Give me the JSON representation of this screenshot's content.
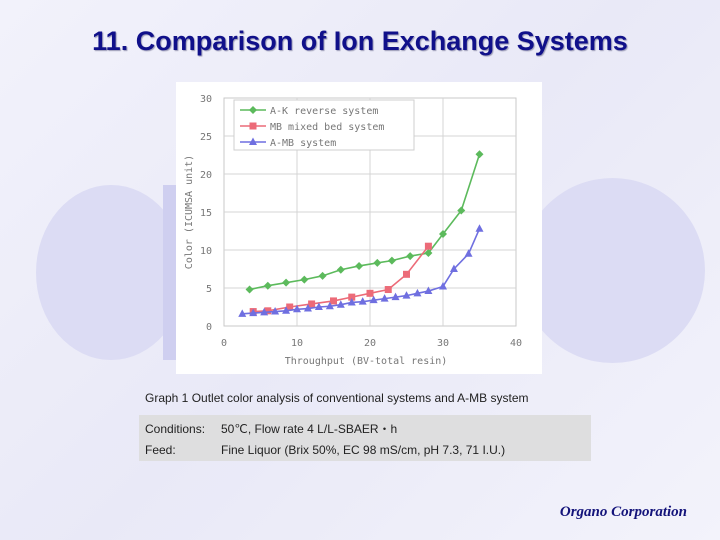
{
  "slide": {
    "title": "11.  Comparison of Ion Exchange Systems",
    "caption": "Graph 1  Outlet color analysis of conventional systems and A-MB system",
    "conditions_label": "Conditions:",
    "conditions_value": "50℃, Flow rate  4 L/L-SBAER・h",
    "feed_label": "Feed:",
    "feed_value": "Fine Liquor  (Brix 50%, EC 98 mS/cm, pH 7.3, 71 I.U.)",
    "footer": "Organo Corporation"
  },
  "colors": {
    "title": "#10108a",
    "series_ak": "#5cba5c",
    "series_mb": "#ec6b78",
    "series_amb": "#6f6fe0"
  },
  "chart_data": {
    "type": "line",
    "title": "",
    "xlabel": "Throughput (BV-total resin)",
    "ylabel": "Color (ICUMSA unit)",
    "xlim": [
      0,
      40
    ],
    "ylim": [
      0,
      30
    ],
    "xticks": [
      0,
      10,
      20,
      30,
      40
    ],
    "yticks": [
      0,
      5,
      10,
      15,
      20,
      25,
      30
    ],
    "legend_position": "top-left",
    "series": [
      {
        "name": "A-K  reverse system",
        "marker": "diamond",
        "color": "#5cba5c",
        "x": [
          3.5,
          6,
          8.5,
          11,
          13.5,
          16,
          18.5,
          21,
          23,
          25.5,
          28,
          30,
          32.5,
          35
        ],
        "y": [
          4.8,
          5.3,
          5.7,
          6.1,
          6.6,
          7.4,
          7.9,
          8.3,
          8.6,
          9.2,
          9.6,
          12.1,
          15.2,
          22.6
        ]
      },
      {
        "name": "MB  mixed bed system",
        "marker": "square",
        "color": "#ec6b78",
        "x": [
          4,
          6,
          9,
          12,
          15,
          17.5,
          20,
          22.5,
          25,
          28
        ],
        "y": [
          1.9,
          2.0,
          2.5,
          2.9,
          3.3,
          3.8,
          4.3,
          4.8,
          6.8,
          10.5
        ]
      },
      {
        "name": "A-MB system",
        "marker": "triangle",
        "color": "#6f6fe0",
        "x": [
          2.5,
          4,
          5.5,
          7,
          8.5,
          10,
          11.5,
          13,
          14.5,
          16,
          17.5,
          19,
          20.5,
          22,
          23.5,
          25,
          26.5,
          28,
          30,
          31.5,
          33.5,
          35
        ],
        "y": [
          1.6,
          1.7,
          1.8,
          1.9,
          2.0,
          2.2,
          2.3,
          2.5,
          2.6,
          2.8,
          3.1,
          3.2,
          3.4,
          3.6,
          3.8,
          4.0,
          4.3,
          4.6,
          5.2,
          7.5,
          9.5,
          12.8
        ]
      }
    ]
  }
}
